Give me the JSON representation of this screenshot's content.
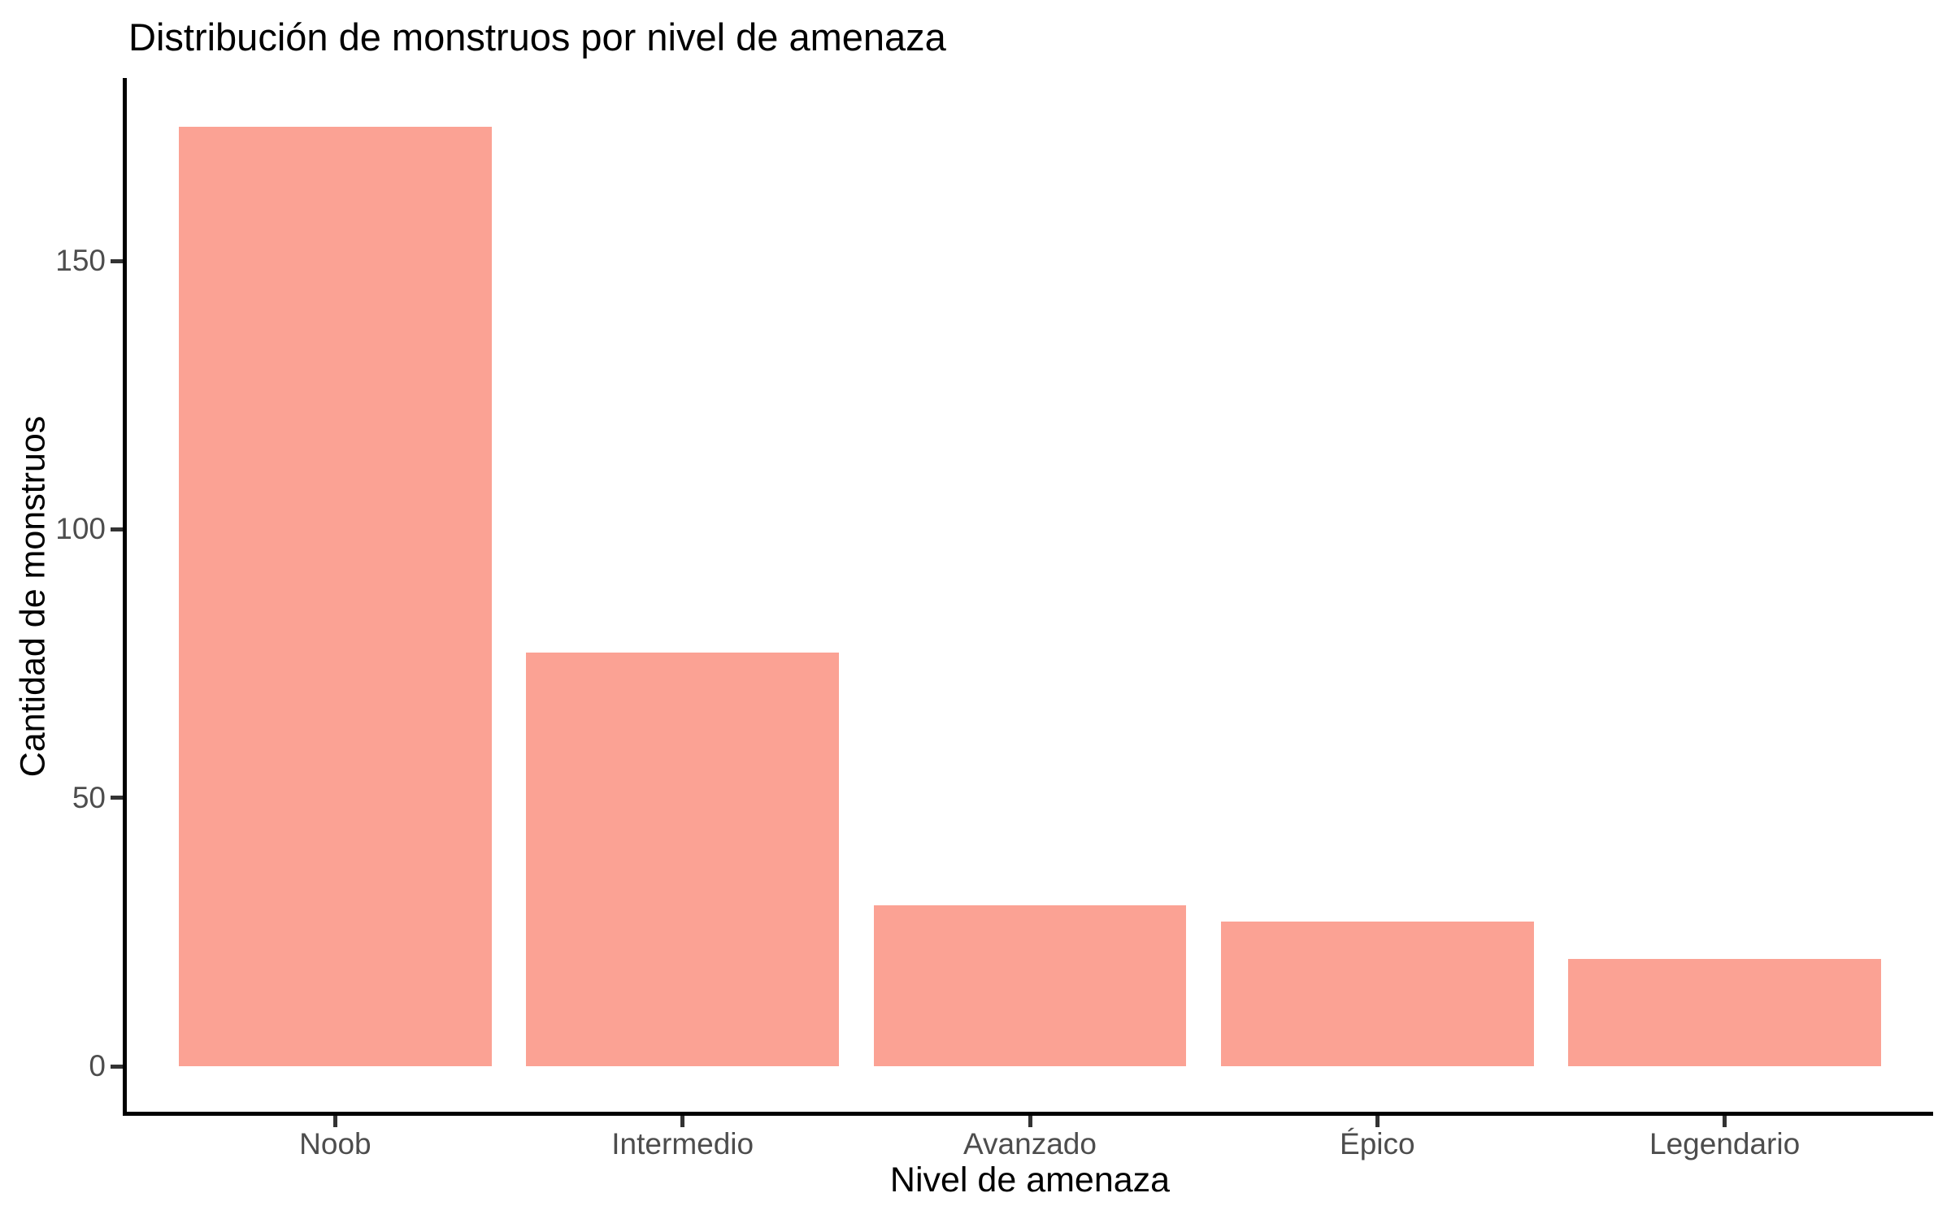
{
  "title": "Distribución de monstruos por nivel de amenaza",
  "chart_data": {
    "type": "bar",
    "title": "Distribución de monstruos por nivel de amenaza",
    "xlabel": "Nivel de amenaza",
    "ylabel": "Cantidad de monstruos",
    "categories": [
      "Noob",
      "Intermedio",
      "Avanzado",
      "Épico",
      "Legendario"
    ],
    "values": [
      175,
      77,
      30,
      27,
      20
    ],
    "yticks": [
      0,
      50,
      100,
      150
    ],
    "ylim": [
      -8.75,
      183.75
    ],
    "bar_width_frac": 0.9,
    "outer_pad_units": 0.6,
    "grid": false,
    "legend": false,
    "colors": {
      "bar_fill": "#FBA294",
      "axis_line": "#000000",
      "tick_mark": "#333333",
      "tick_label": "#4D4D4D",
      "title_text": "#000000",
      "background": "#FFFFFF"
    }
  }
}
